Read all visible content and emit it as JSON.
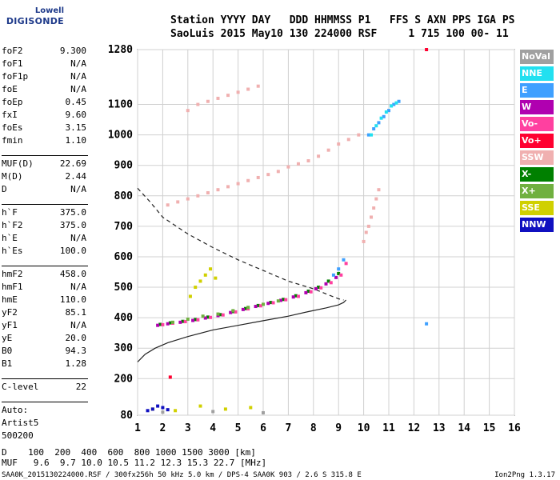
{
  "logo": {
    "line1": "Lowell",
    "line2": "DIGISONDE"
  },
  "header": {
    "line1": "Station YYYY DAY   DDD HHMMSS P1   FFS S AXN PPS IGA PS",
    "line2": "SaoLuis 2015 May10 130 224000 RSF     1 715 100 00- 11"
  },
  "params": [
    {
      "name": "foF2",
      "value": "9.300"
    },
    {
      "name": "foF1",
      "value": "N/A"
    },
    {
      "name": "foF1p",
      "value": "N/A"
    },
    {
      "name": "foE",
      "value": "N/A"
    },
    {
      "name": "foEp",
      "value": "0.45"
    },
    {
      "name": "fxI",
      "value": "9.60"
    },
    {
      "name": "foEs",
      "value": "3.15"
    },
    {
      "name": "fmin",
      "value": "1.10"
    },
    {
      "sep": true
    },
    {
      "name": "MUF(D)",
      "value": "22.69"
    },
    {
      "name": "M(D)",
      "value": "2.44"
    },
    {
      "name": "D",
      "value": "N/A"
    },
    {
      "sep": true
    },
    {
      "name": "h`F",
      "value": "375.0"
    },
    {
      "name": "h`F2",
      "value": "375.0"
    },
    {
      "name": "h`E",
      "value": "N/A"
    },
    {
      "name": "h`Es",
      "value": "100.0"
    },
    {
      "sep": true
    },
    {
      "name": "hmF2",
      "value": "458.0"
    },
    {
      "name": "hmF1",
      "value": "N/A"
    },
    {
      "name": "hmE",
      "value": "110.0"
    },
    {
      "name": "yF2",
      "value": "85.1"
    },
    {
      "name": "yF1",
      "value": "N/A"
    },
    {
      "name": "yE",
      "value": "20.0"
    },
    {
      "name": "B0",
      "value": "94.3"
    },
    {
      "name": "B1",
      "value": "1.28"
    },
    {
      "sep": true
    },
    {
      "name": "C-level",
      "value": "22"
    },
    {
      "sep": true
    },
    {
      "name": "Auto:",
      "value": ""
    },
    {
      "name": "Artist5",
      "value": ""
    },
    {
      "name": "500200",
      "value": ""
    }
  ],
  "legend": [
    {
      "label": "NoVal",
      "color": "#a0a0a0"
    },
    {
      "label": "NNE",
      "color": "#22e0f0"
    },
    {
      "label": "E",
      "color": "#3fa0ff"
    },
    {
      "label": "W",
      "color": "#b000b0"
    },
    {
      "label": "Vo-",
      "color": "#ff40a0"
    },
    {
      "label": "Vo+",
      "color": "#ff0030"
    },
    {
      "label": "SSW",
      "color": "#f0b0b0"
    },
    {
      "label": "X-",
      "color": "#008000"
    },
    {
      "label": "X+",
      "color": "#70b040"
    },
    {
      "label": "SSE",
      "color": "#d0d000"
    },
    {
      "label": "NNW",
      "color": "#1010c0"
    }
  ],
  "bottom": {
    "line1": "D    100  200  400  600  800 1000 1500 3000 [km]",
    "line2": "MUF   9.6  9.7 10.0 10.5 11.2 12.3 15.3 22.7 [MHz]",
    "footer": "SAA0K_2015130224000.RSF / 300fx256h 50 kHz 5.0 km / DPS-4 SAA0K 903 / 2.6 S 315.8 E",
    "version": "Ion2Png 1.3.17"
  },
  "chart_data": {
    "type": "scatter",
    "title": "",
    "xlabel": "",
    "ylabel": "",
    "xlim": [
      1,
      16
    ],
    "ylim": [
      80,
      1280
    ],
    "xticks": [
      1,
      2,
      3,
      4,
      5,
      6,
      7,
      8,
      9,
      10,
      11,
      12,
      13,
      14,
      15,
      16
    ],
    "yticks": [
      80,
      200,
      300,
      400,
      500,
      600,
      700,
      800,
      900,
      1000,
      1100,
      1280
    ],
    "grid": true,
    "series": [
      {
        "name": "X-",
        "color": "#008000",
        "x": [
          1.9,
          2.3,
          2.8,
          3.3,
          3.8,
          4.3,
          4.8,
          5.3,
          5.8,
          6.3,
          6.8,
          7.3,
          7.8,
          8.2,
          8.6,
          9.0
        ],
        "values": [
          378,
          383,
          388,
          394,
          402,
          410,
          420,
          430,
          440,
          450,
          460,
          472,
          487,
          500,
          520,
          545
        ]
      },
      {
        "name": "Vo-",
        "color": "#ff40a0",
        "x": [
          2.0,
          2.4,
          2.9,
          3.4,
          3.9,
          4.4,
          4.9,
          5.4,
          5.9,
          6.4,
          6.9,
          7.4,
          7.9,
          8.3,
          8.7,
          9.1,
          9.3
        ],
        "values": [
          377,
          382,
          387,
          393,
          401,
          409,
          419,
          429,
          439,
          449,
          459,
          470,
          485,
          498,
          515,
          540,
          578
        ]
      },
      {
        "name": "W",
        "color": "#b000b0",
        "x": [
          1.8,
          2.2,
          2.7,
          3.2,
          3.7,
          4.2,
          4.7,
          5.2,
          5.7,
          6.2,
          6.7,
          7.2,
          7.7,
          8.1,
          8.5,
          8.9
        ],
        "values": [
          375,
          380,
          385,
          391,
          399,
          407,
          417,
          427,
          437,
          447,
          457,
          468,
          482,
          495,
          511,
          532
        ]
      },
      {
        "name": "E",
        "color": "#3fa0ff",
        "x": [
          8.8,
          9.0,
          9.2,
          10.2,
          10.4,
          10.6,
          10.8,
          11.0,
          11.2,
          11.4,
          12.5
        ],
        "values": [
          540,
          560,
          590,
          1000,
          1020,
          1040,
          1060,
          1080,
          1100,
          1110,
          380
        ]
      },
      {
        "name": "NNE",
        "color": "#22e0f0",
        "x": [
          10.3,
          10.5,
          10.7,
          10.9,
          11.1,
          11.3
        ],
        "values": [
          1000,
          1030,
          1055,
          1075,
          1095,
          1105
        ]
      },
      {
        "name": "SSW",
        "color": "#f0b0b0",
        "x": [
          2.2,
          2.6,
          3.0,
          3.4,
          3.8,
          4.2,
          4.6,
          5.0,
          5.4,
          5.8,
          6.2,
          6.6,
          7.0,
          7.4,
          7.8,
          8.2,
          8.6,
          9.0,
          9.4,
          9.8,
          10.0,
          10.1,
          10.2,
          10.3,
          10.4,
          10.5,
          10.6,
          3.0,
          3.4,
          3.8,
          4.2,
          4.6,
          5.0,
          5.4,
          5.8
        ],
        "values": [
          770,
          780,
          790,
          800,
          810,
          820,
          830,
          840,
          850,
          860,
          870,
          880,
          895,
          905,
          915,
          930,
          950,
          970,
          985,
          1000,
          650,
          680,
          700,
          730,
          760,
          790,
          820,
          1080,
          1100,
          1110,
          1120,
          1130,
          1140,
          1150,
          1160
        ]
      },
      {
        "name": "Vo+",
        "color": "#ff0030",
        "x": [
          2.3,
          12.5
        ],
        "values": [
          205,
          1280
        ]
      },
      {
        "name": "SSE",
        "color": "#d0d000",
        "x": [
          3.1,
          3.3,
          3.5,
          3.7,
          3.9,
          4.1,
          1.6,
          2.5,
          3.5,
          4.5,
          5.5
        ],
        "values": [
          470,
          500,
          520,
          540,
          560,
          530,
          100,
          95,
          110,
          100,
          105
        ]
      },
      {
        "name": "NNW",
        "color": "#1010c0",
        "x": [
          1.4,
          1.6,
          1.8,
          2.0,
          2.2
        ],
        "values": [
          95,
          100,
          110,
          105,
          98
        ]
      },
      {
        "name": "X+",
        "color": "#70b040",
        "x": [
          2.4,
          3.0,
          3.6,
          4.2,
          4.8,
          5.4,
          6.0,
          6.6
        ],
        "values": [
          385,
          395,
          405,
          412,
          423,
          434,
          444,
          455
        ]
      },
      {
        "name": "NoVal",
        "color": "#a0a0a0",
        "x": [
          2.0,
          4.0,
          6.0
        ],
        "values": [
          90,
          92,
          88
        ]
      }
    ],
    "profile_upper": {
      "x": [
        1.0,
        1.5,
        2.0,
        3.0,
        4.0,
        5.0,
        6.0,
        7.0,
        8.0,
        8.6,
        9.0,
        9.2
      ],
      "values": [
        825,
        780,
        730,
        675,
        630,
        590,
        555,
        520,
        495,
        475,
        462,
        458
      ]
    },
    "profile_lower": {
      "x": [
        1.0,
        1.3,
        1.7,
        2.2,
        3.0,
        4.0,
        5.0,
        6.0,
        7.0,
        7.8,
        8.5,
        9.0,
        9.2,
        9.3
      ],
      "values": [
        255,
        280,
        300,
        318,
        338,
        360,
        375,
        390,
        405,
        420,
        432,
        442,
        450,
        458
      ]
    }
  }
}
